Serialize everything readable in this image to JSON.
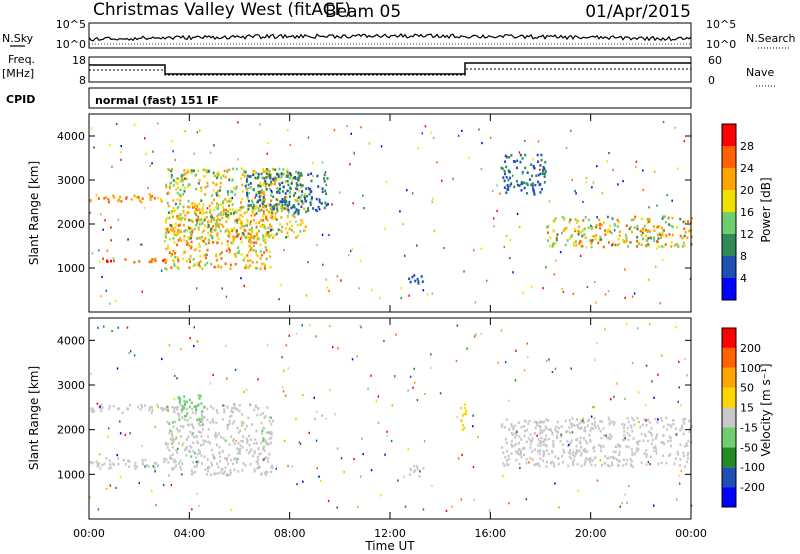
{
  "header": {
    "title": "Christmas Valley West (fitACF)",
    "beam": "Beam 05",
    "date": "01/Apr/2015"
  },
  "nsky_panel": {
    "left_label": "N.Sky",
    "right_label": "N.Search",
    "left_ticks": [
      "10^5",
      "10^0"
    ],
    "right_ticks": [
      "10^5",
      "10^0"
    ]
  },
  "freq_panel": {
    "left_label_1": "Freq.",
    "left_label_2": "[MHz]",
    "right_label": "Nave",
    "left_ticks": [
      "18",
      "8"
    ],
    "right_ticks": [
      "60",
      "0"
    ]
  },
  "cpid_panel": {
    "label": "CPID",
    "text": "normal (fast) 151 IF"
  },
  "colors": {
    "power": [
      "#0000ff",
      "#1e50b4",
      "#2e8b57",
      "#6fcf6f",
      "#f0e000",
      "#ffa500",
      "#ff6400",
      "#ff0000"
    ],
    "velocity": [
      "#0000ff",
      "#1e50b4",
      "#228b22",
      "#6fcf6f",
      "#c8c8c8",
      "#ffd700",
      "#ffa500",
      "#ff6400",
      "#ff0000"
    ],
    "ground_scatter": "#c8c8c8"
  },
  "chart_data": [
    {
      "type": "heatmap",
      "title": "",
      "ylabel": "Slant Range [km]",
      "xlabel": "",
      "ylim": [
        0,
        4500
      ],
      "yticks": [
        "1000",
        "2000",
        "3000",
        "4000"
      ],
      "colorbar_label": "Power [dB]",
      "colorbar_ticks": [
        "28",
        "24",
        "20",
        "16",
        "12",
        "8",
        "4"
      ],
      "colorbar_range": [
        0,
        32
      ],
      "bands": [
        {
          "t0": 0.0,
          "t1": 3.0,
          "r0": 1150,
          "r1": 1250,
          "v0": 22,
          "v1": 30
        },
        {
          "t0": 0.0,
          "t1": 3.0,
          "r0": 2500,
          "r1": 2700,
          "v0": 18,
          "v1": 27
        },
        {
          "t0": 3.0,
          "t1": 7.3,
          "r0": 1000,
          "r1": 2500,
          "v0": 14,
          "v1": 28
        },
        {
          "t0": 3.0,
          "t1": 8.6,
          "r0": 1700,
          "r1": 3300,
          "v0": 10,
          "v1": 24
        },
        {
          "t0": 6.2,
          "t1": 9.5,
          "r0": 2300,
          "r1": 3200,
          "v0": 4,
          "v1": 12
        },
        {
          "t0": 12.7,
          "t1": 13.3,
          "r0": 600,
          "r1": 900,
          "v0": 4,
          "v1": 8
        },
        {
          "t0": 16.4,
          "t1": 18.2,
          "r0": 2700,
          "r1": 3600,
          "v0": 4,
          "v1": 10
        },
        {
          "t0": 18.2,
          "t1": 24.0,
          "r0": 1500,
          "r1": 2200,
          "v0": 10,
          "v1": 26
        }
      ]
    },
    {
      "type": "heatmap",
      "title": "",
      "ylabel": "Slant Range [km]",
      "xlabel": "Time UT",
      "ylim": [
        0,
        4500
      ],
      "yticks": [
        "1000",
        "2000",
        "3000",
        "4000"
      ],
      "xticks": [
        "00:00",
        "04:00",
        "08:00",
        "12:00",
        "16:00",
        "20:00",
        "00:00"
      ],
      "xlim": [
        "00:00",
        "24:00"
      ],
      "colorbar_label": "Velocity [m s⁻¹]",
      "colorbar_ticks": [
        "200",
        "100",
        "50",
        "15",
        "-15",
        "-50",
        "-100",
        "-200"
      ],
      "colorbar_range": [
        -250,
        250
      ],
      "bands": [
        {
          "t0": 0.0,
          "t1": 3.0,
          "r0": 1150,
          "r1": 1400,
          "v0": -10,
          "v1": 10
        },
        {
          "t0": 0.0,
          "t1": 3.0,
          "r0": 2400,
          "r1": 2600,
          "v0": -10,
          "v1": 10
        },
        {
          "t0": 3.0,
          "t1": 7.3,
          "r0": 1000,
          "r1": 2600,
          "v0": -30,
          "v1": 10
        },
        {
          "t0": 3.5,
          "t1": 4.5,
          "r0": 2200,
          "r1": 2800,
          "v0": -80,
          "v1": -40
        },
        {
          "t0": 12.7,
          "t1": 13.3,
          "r0": 950,
          "r1": 1250,
          "v0": -10,
          "v1": 10
        },
        {
          "t0": 14.7,
          "t1": 15.0,
          "r0": 2000,
          "r1": 2700,
          "v0": 30,
          "v1": 60
        },
        {
          "t0": 16.4,
          "t1": 24.0,
          "r0": 1200,
          "r1": 2300,
          "v0": -10,
          "v1": 10
        }
      ]
    }
  ]
}
